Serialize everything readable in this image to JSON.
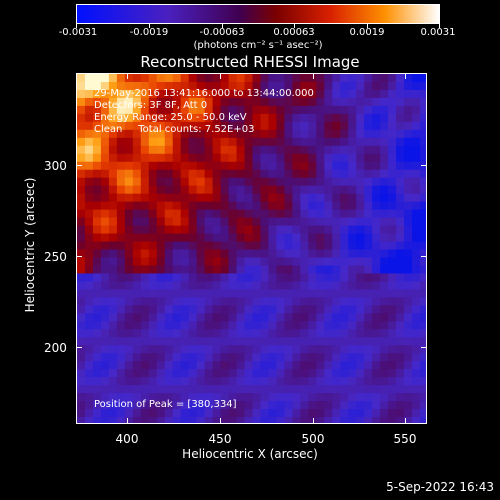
{
  "colorbar": {
    "labels": [
      "-0.0031",
      "-0.0019",
      "-0.00063",
      "0.00063",
      "0.0019",
      "0.0031"
    ],
    "unit": "(photons cm⁻² s⁻¹ asec⁻²)"
  },
  "title": "Reconstructed RHESSI Image",
  "annotations": {
    "line1": "29-May-2016 13:41:16.000 to 13:44:00.000",
    "line2": "Detectors: 3F 8F, Att 0",
    "line3": "Energy Range: 25.0 - 50.0 keV",
    "line4": "Clean     Total counts: 7.52E+03",
    "peak": "Position of Peak = [380,334]"
  },
  "x_axis": {
    "title": "Heliocentric X (arcsec)",
    "ticks": [
      "400",
      "450",
      "500",
      "550"
    ]
  },
  "y_axis": {
    "title": "Heliocentric Y (arcsec)",
    "ticks": [
      "300",
      "250",
      "200"
    ]
  },
  "timestamp": "5-Sep-2022 16:43",
  "colors": {
    "background": "#000000",
    "text": "#ffffff"
  }
}
